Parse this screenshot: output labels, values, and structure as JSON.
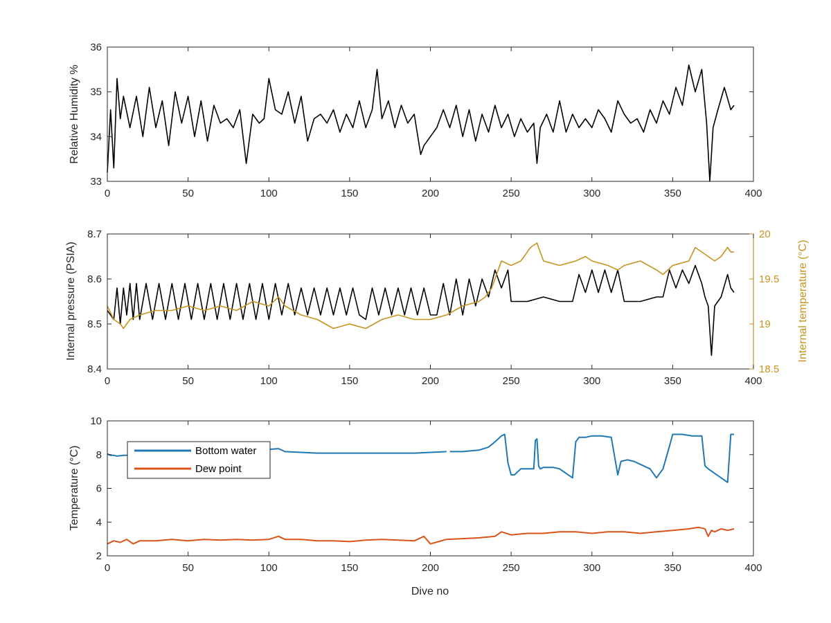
{
  "colors": {
    "black": "#000000",
    "gold": "#C5941F",
    "blue": "#1F77B4",
    "orange": "#D95319",
    "axis": "#262626"
  },
  "chart_data": [
    {
      "type": "line",
      "xlabel": "",
      "ylabel": "Relative Humidity %",
      "xlim": [
        0,
        400
      ],
      "ylim": [
        33,
        36
      ],
      "xticks": [
        "0",
        "50",
        "100",
        "150",
        "200",
        "250",
        "300",
        "350",
        "400"
      ],
      "yticks": [
        "33",
        "34",
        "35",
        "36"
      ],
      "series": [
        {
          "color": "#000000",
          "x": [
            0,
            2,
            4,
            6,
            8,
            10,
            14,
            18,
            22,
            26,
            30,
            34,
            38,
            42,
            46,
            50,
            54,
            58,
            62,
            66,
            70,
            74,
            78,
            82,
            86,
            90,
            94,
            97,
            100,
            104,
            108,
            112,
            116,
            120,
            124,
            128,
            132,
            136,
            140,
            144,
            148,
            152,
            156,
            160,
            164,
            167,
            170,
            174,
            178,
            182,
            186,
            190,
            194,
            196,
            200,
            204,
            208,
            212,
            216,
            220,
            224,
            228,
            232,
            236,
            240,
            244,
            248,
            252,
            256,
            260,
            264,
            266,
            268,
            272,
            276,
            280,
            284,
            288,
            292,
            296,
            300,
            304,
            308,
            312,
            316,
            320,
            324,
            328,
            332,
            336,
            340,
            344,
            348,
            352,
            356,
            360,
            364,
            368,
            371,
            373,
            375,
            378,
            382,
            386,
            388
          ],
          "y": [
            33.2,
            34.6,
            33.3,
            35.3,
            34.4,
            34.9,
            34.2,
            34.9,
            34.0,
            35.1,
            34.2,
            34.8,
            33.8,
            35.0,
            34.3,
            34.9,
            34.0,
            34.8,
            33.9,
            34.7,
            34.3,
            34.4,
            34.2,
            34.6,
            33.4,
            34.5,
            34.3,
            34.4,
            35.3,
            34.6,
            34.5,
            35.0,
            34.3,
            34.9,
            33.9,
            34.4,
            34.5,
            34.3,
            34.6,
            34.1,
            34.5,
            34.2,
            34.8,
            34.2,
            34.6,
            35.5,
            34.4,
            34.8,
            34.2,
            34.7,
            34.3,
            34.5,
            33.6,
            33.8,
            34.0,
            34.2,
            34.6,
            34.2,
            34.7,
            34.0,
            34.6,
            33.9,
            34.5,
            34.1,
            34.7,
            34.2,
            34.5,
            34.0,
            34.4,
            34.1,
            34.3,
            33.4,
            34.2,
            34.5,
            34.1,
            34.8,
            34.1,
            34.5,
            34.2,
            34.4,
            34.2,
            34.6,
            34.4,
            34.1,
            34.8,
            34.5,
            34.3,
            34.4,
            34.1,
            34.6,
            34.3,
            34.8,
            34.5,
            35.1,
            34.7,
            35.6,
            35.0,
            35.5,
            34.3,
            33.0,
            34.2,
            34.6,
            35.1,
            34.6,
            34.7
          ]
        }
      ]
    },
    {
      "type": "line",
      "xlabel": "",
      "ylabel": "Internal pressure (PSIA)",
      "y2label": "Internal temperature (°C)",
      "xlim": [
        0,
        400
      ],
      "ylim": [
        8.4,
        8.7
      ],
      "y2lim": [
        18.5,
        20
      ],
      "xticks": [
        "0",
        "50",
        "100",
        "150",
        "200",
        "250",
        "300",
        "350",
        "400"
      ],
      "yticks": [
        "8.4",
        "8.5",
        "8.6",
        "8.7"
      ],
      "y2ticks": [
        "18.5",
        "19",
        "19.5",
        "20"
      ],
      "series": [
        {
          "axis": "left",
          "color": "#000000",
          "x": [
            0,
            4,
            6,
            8,
            10,
            12,
            14,
            16,
            18,
            20,
            24,
            28,
            32,
            36,
            40,
            44,
            48,
            52,
            56,
            60,
            64,
            68,
            72,
            76,
            80,
            84,
            88,
            92,
            96,
            100,
            104,
            108,
            112,
            116,
            120,
            124,
            128,
            132,
            136,
            140,
            144,
            148,
            152,
            156,
            160,
            164,
            168,
            172,
            176,
            180,
            184,
            188,
            192,
            196,
            200,
            204,
            208,
            212,
            216,
            220,
            224,
            228,
            232,
            236,
            240,
            244,
            248,
            250,
            260,
            270,
            280,
            288,
            292,
            296,
            300,
            304,
            308,
            312,
            316,
            320,
            330,
            340,
            344,
            348,
            352,
            356,
            360,
            364,
            368,
            370,
            372,
            374,
            376,
            380,
            384,
            386,
            388
          ],
          "y": [
            8.53,
            8.51,
            8.58,
            8.5,
            8.58,
            8.52,
            8.59,
            8.51,
            8.59,
            8.51,
            8.59,
            8.51,
            8.59,
            8.51,
            8.59,
            8.51,
            8.59,
            8.51,
            8.59,
            8.51,
            8.59,
            8.51,
            8.59,
            8.51,
            8.59,
            8.51,
            8.59,
            8.51,
            8.59,
            8.51,
            8.59,
            8.52,
            8.59,
            8.52,
            8.58,
            8.52,
            8.58,
            8.52,
            8.58,
            8.52,
            8.58,
            8.52,
            8.58,
            8.52,
            8.51,
            8.58,
            8.52,
            8.58,
            8.52,
            8.58,
            8.52,
            8.58,
            8.52,
            8.58,
            8.52,
            8.52,
            8.59,
            8.52,
            8.6,
            8.52,
            8.6,
            8.54,
            8.6,
            8.56,
            8.62,
            8.58,
            8.62,
            8.55,
            8.55,
            8.56,
            8.55,
            8.55,
            8.61,
            8.57,
            8.62,
            8.57,
            8.62,
            8.57,
            8.62,
            8.55,
            8.55,
            8.56,
            8.56,
            8.62,
            8.58,
            8.62,
            8.59,
            8.63,
            8.59,
            8.56,
            8.54,
            8.43,
            8.54,
            8.56,
            8.61,
            8.58,
            8.57
          ]
        },
        {
          "axis": "right",
          "color": "#C5941F",
          "x": [
            0,
            4,
            8,
            10,
            14,
            20,
            30,
            40,
            50,
            60,
            70,
            80,
            90,
            100,
            106,
            110,
            120,
            130,
            135,
            140,
            150,
            160,
            170,
            180,
            190,
            200,
            210,
            220,
            230,
            234,
            238,
            244,
            250,
            256,
            262,
            266,
            270,
            280,
            290,
            296,
            300,
            310,
            316,
            320,
            330,
            340,
            344,
            350,
            360,
            364,
            368,
            372,
            376,
            380,
            384,
            386,
            388
          ],
          "y": [
            19.2,
            19.05,
            19.0,
            18.95,
            19.05,
            19.1,
            19.15,
            19.15,
            19.2,
            19.15,
            19.2,
            19.15,
            19.25,
            19.2,
            19.3,
            19.2,
            19.1,
            19.05,
            19.0,
            18.95,
            19.0,
            18.95,
            19.05,
            19.1,
            19.05,
            19.05,
            19.1,
            19.2,
            19.25,
            19.3,
            19.4,
            19.7,
            19.65,
            19.7,
            19.85,
            19.9,
            19.7,
            19.65,
            19.7,
            19.75,
            19.7,
            19.65,
            19.6,
            19.65,
            19.7,
            19.6,
            19.55,
            19.65,
            19.7,
            19.85,
            19.8,
            19.75,
            19.7,
            19.75,
            19.85,
            19.8,
            19.8
          ]
        }
      ]
    },
    {
      "type": "line",
      "xlabel": "Dive no",
      "ylabel": "Temperature (°C)",
      "xlim": [
        0,
        400
      ],
      "ylim": [
        2,
        11
      ],
      "xticks": [
        "0",
        "50",
        "100",
        "150",
        "200",
        "250",
        "300",
        "350",
        "400"
      ],
      "yticks": [
        "2",
        "4",
        "6",
        "8",
        "10"
      ],
      "legend_position": "top-left",
      "series": [
        {
          "name": "Bottom water",
          "color": "#1F77B4",
          "x": [
            0,
            2,
            4,
            6,
            10,
            14,
            null,
            60,
            70,
            80,
            90,
            100,
            106,
            110,
            120,
            130,
            140,
            150,
            160,
            170,
            180,
            190,
            200,
            210,
            null,
            212,
            220,
            230,
            236,
            240,
            244,
            246,
            248,
            250,
            252,
            256,
            260,
            264,
            265,
            266,
            267,
            268,
            270,
            276,
            280,
            284,
            288,
            290,
            292,
            296,
            300,
            306,
            312,
            316,
            318,
            322,
            326,
            330,
            336,
            340,
            344,
            348,
            350,
            356,
            362,
            368,
            370,
            372,
            376,
            380,
            384,
            386,
            388
          ],
          "y": [
            8.8,
            8.7,
            8.7,
            8.65,
            8.7,
            8.7,
            null,
            9.1,
            9.1,
            9.1,
            9.05,
            9.1,
            9.15,
            8.95,
            8.9,
            8.85,
            8.85,
            8.85,
            8.85,
            8.85,
            8.85,
            8.85,
            8.9,
            8.95,
            null,
            8.95,
            8.95,
            9.05,
            9.25,
            9.6,
            10.0,
            10.1,
            8.2,
            7.4,
            7.4,
            7.8,
            7.8,
            7.8,
            9.7,
            9.8,
            8.0,
            7.8,
            7.9,
            7.9,
            7.8,
            7.5,
            7.2,
            9.6,
            9.9,
            9.9,
            10.0,
            10.0,
            9.9,
            7.4,
            8.3,
            8.4,
            8.3,
            8.1,
            7.8,
            7.2,
            7.8,
            9.3,
            10.1,
            10.1,
            10.0,
            10.0,
            8.0,
            7.8,
            7.5,
            7.2,
            6.9,
            10.1,
            10.1
          ]
        },
        {
          "name": "Dew point",
          "color": "#D95319",
          "x": [
            0,
            4,
            8,
            12,
            16,
            20,
            30,
            40,
            50,
            60,
            70,
            80,
            90,
            100,
            106,
            110,
            120,
            130,
            140,
            150,
            160,
            170,
            180,
            190,
            196,
            200,
            210,
            220,
            230,
            240,
            244,
            250,
            260,
            270,
            280,
            290,
            300,
            310,
            320,
            330,
            340,
            350,
            360,
            366,
            370,
            372,
            374,
            376,
            380,
            384,
            388
          ],
          "y": [
            2.8,
            3.0,
            2.9,
            3.1,
            2.8,
            3.0,
            3.0,
            3.1,
            3.0,
            3.1,
            3.05,
            3.1,
            3.05,
            3.1,
            3.3,
            3.1,
            3.1,
            3.0,
            3.0,
            2.95,
            3.05,
            3.1,
            3.05,
            3.0,
            3.3,
            2.8,
            3.1,
            3.15,
            3.2,
            3.3,
            3.6,
            3.4,
            3.5,
            3.5,
            3.6,
            3.6,
            3.5,
            3.6,
            3.6,
            3.5,
            3.6,
            3.7,
            3.8,
            3.9,
            3.8,
            3.3,
            3.7,
            3.6,
            3.8,
            3.7,
            3.8
          ]
        }
      ]
    }
  ]
}
